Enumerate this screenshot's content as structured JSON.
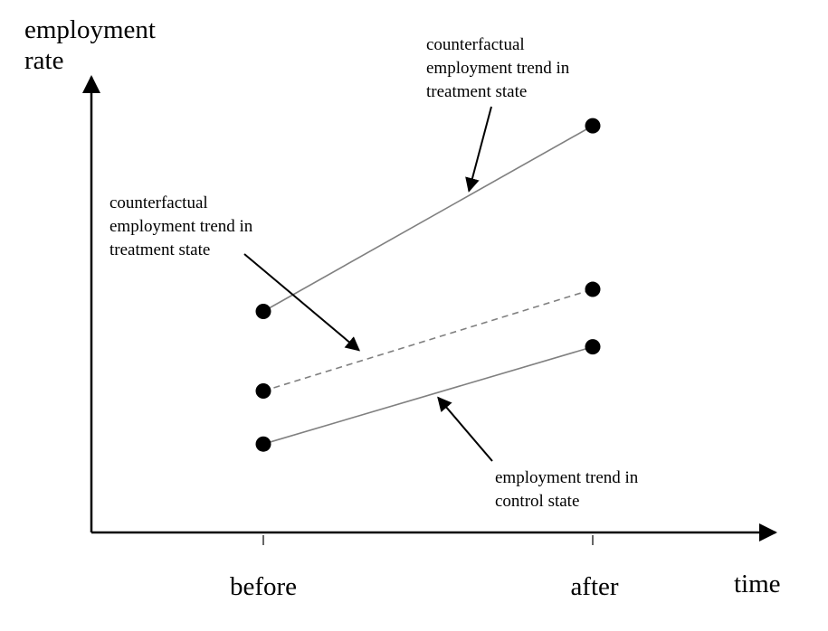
{
  "chart_data": {
    "type": "line",
    "categories": [
      "before",
      "after"
    ],
    "xlabel": "time",
    "ylabel_lines": [
      "employment",
      "rate"
    ],
    "series": [
      {
        "values": [
          0.5,
          0.92
        ],
        "dashed": false
      },
      {
        "values": [
          0.32,
          0.55
        ],
        "dashed": true
      },
      {
        "values": [
          0.2,
          0.42
        ],
        "dashed": false
      }
    ],
    "annotations": [
      {
        "lines": [
          "counterfactual",
          "employment trend in",
          "treatment state"
        ],
        "points_to_series": 0
      },
      {
        "lines": [
          "counterfactual",
          "employment trend in",
          "treatment state"
        ],
        "points_to_series": 1
      },
      {
        "lines": [
          "employment trend in",
          "control state"
        ],
        "points_to_series": 2
      }
    ],
    "colors": {
      "axis": "#000000",
      "line": "#808080",
      "point": "#000000",
      "arrow": "#000000"
    }
  }
}
